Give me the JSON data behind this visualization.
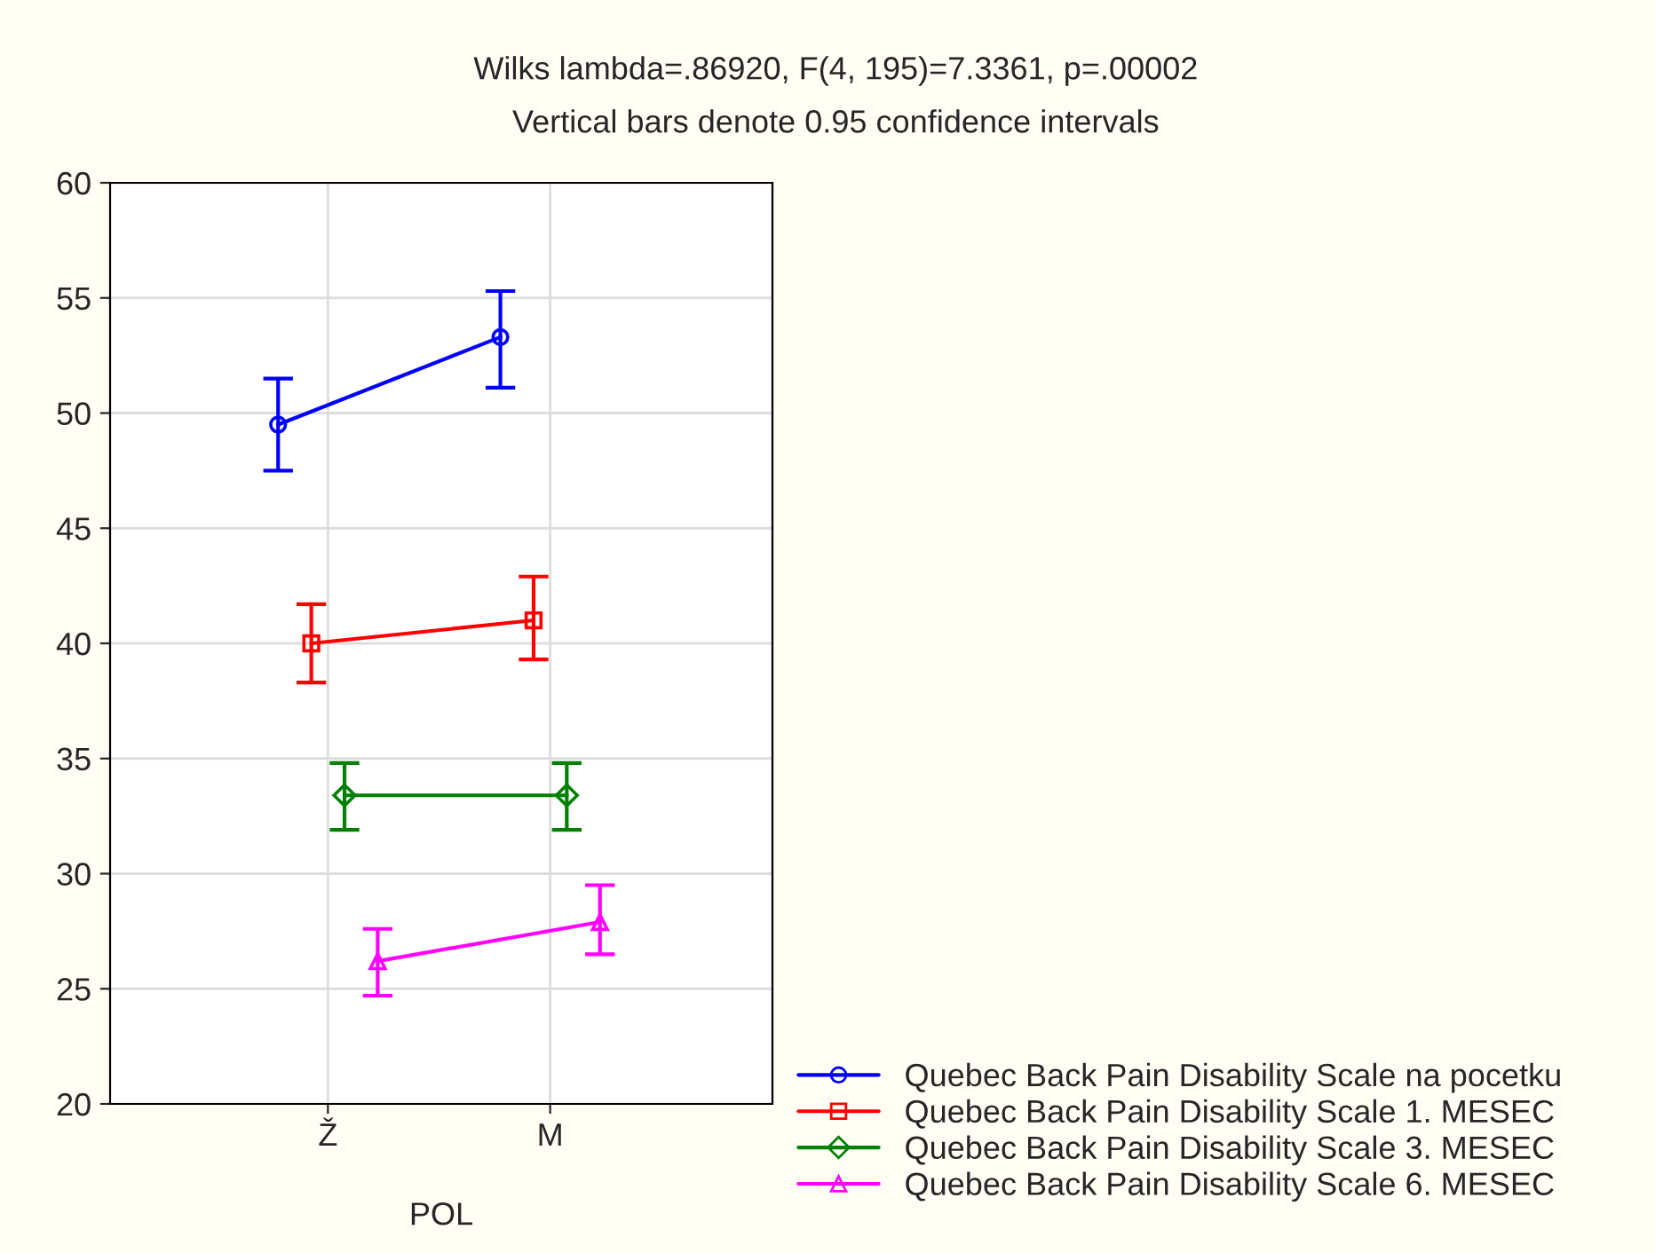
{
  "chart_data": {
    "type": "line",
    "title": "Wilks lambda=.86920, F(4, 195)=7.3361, p=.00002",
    "subtitle": "Vertical bars denote 0.95 confidence intervals",
    "xlabel": "POL",
    "categories": [
      "Ž",
      "M"
    ],
    "series": [
      {
        "name": "Quebec Back Pain Disability Scale na pocetku",
        "color": "#0000ff",
        "marker": "circle",
        "values": [
          49.5,
          53.3
        ],
        "errors": [
          [
            47.5,
            51.5
          ],
          [
            51.1,
            55.3
          ]
        ]
      },
      {
        "name": "Quebec Back Pain Disability Scale 1. MESEC",
        "color": "#ff0000",
        "marker": "square",
        "values": [
          40.0,
          41.0
        ],
        "errors": [
          [
            38.3,
            41.7
          ],
          [
            39.3,
            42.9
          ]
        ]
      },
      {
        "name": "Quebec Back Pain Disability Scale 3. MESEC",
        "color": "#008000",
        "marker": "diamond",
        "values": [
          33.4,
          33.4
        ],
        "errors": [
          [
            31.9,
            34.8
          ],
          [
            31.9,
            34.8
          ]
        ]
      },
      {
        "name": "Quebec Back Pain Disability Scale 6. MESEC",
        "color": "#ff00ff",
        "marker": "triangle",
        "values": [
          26.2,
          27.9
        ],
        "errors": [
          [
            24.7,
            27.6
          ],
          [
            26.5,
            29.5
          ]
        ]
      }
    ],
    "ylim": [
      20,
      60
    ],
    "yticks": [
      20,
      25,
      30,
      35,
      40,
      45,
      50,
      55,
      60
    ],
    "grid": true,
    "legend": "bottom right"
  }
}
